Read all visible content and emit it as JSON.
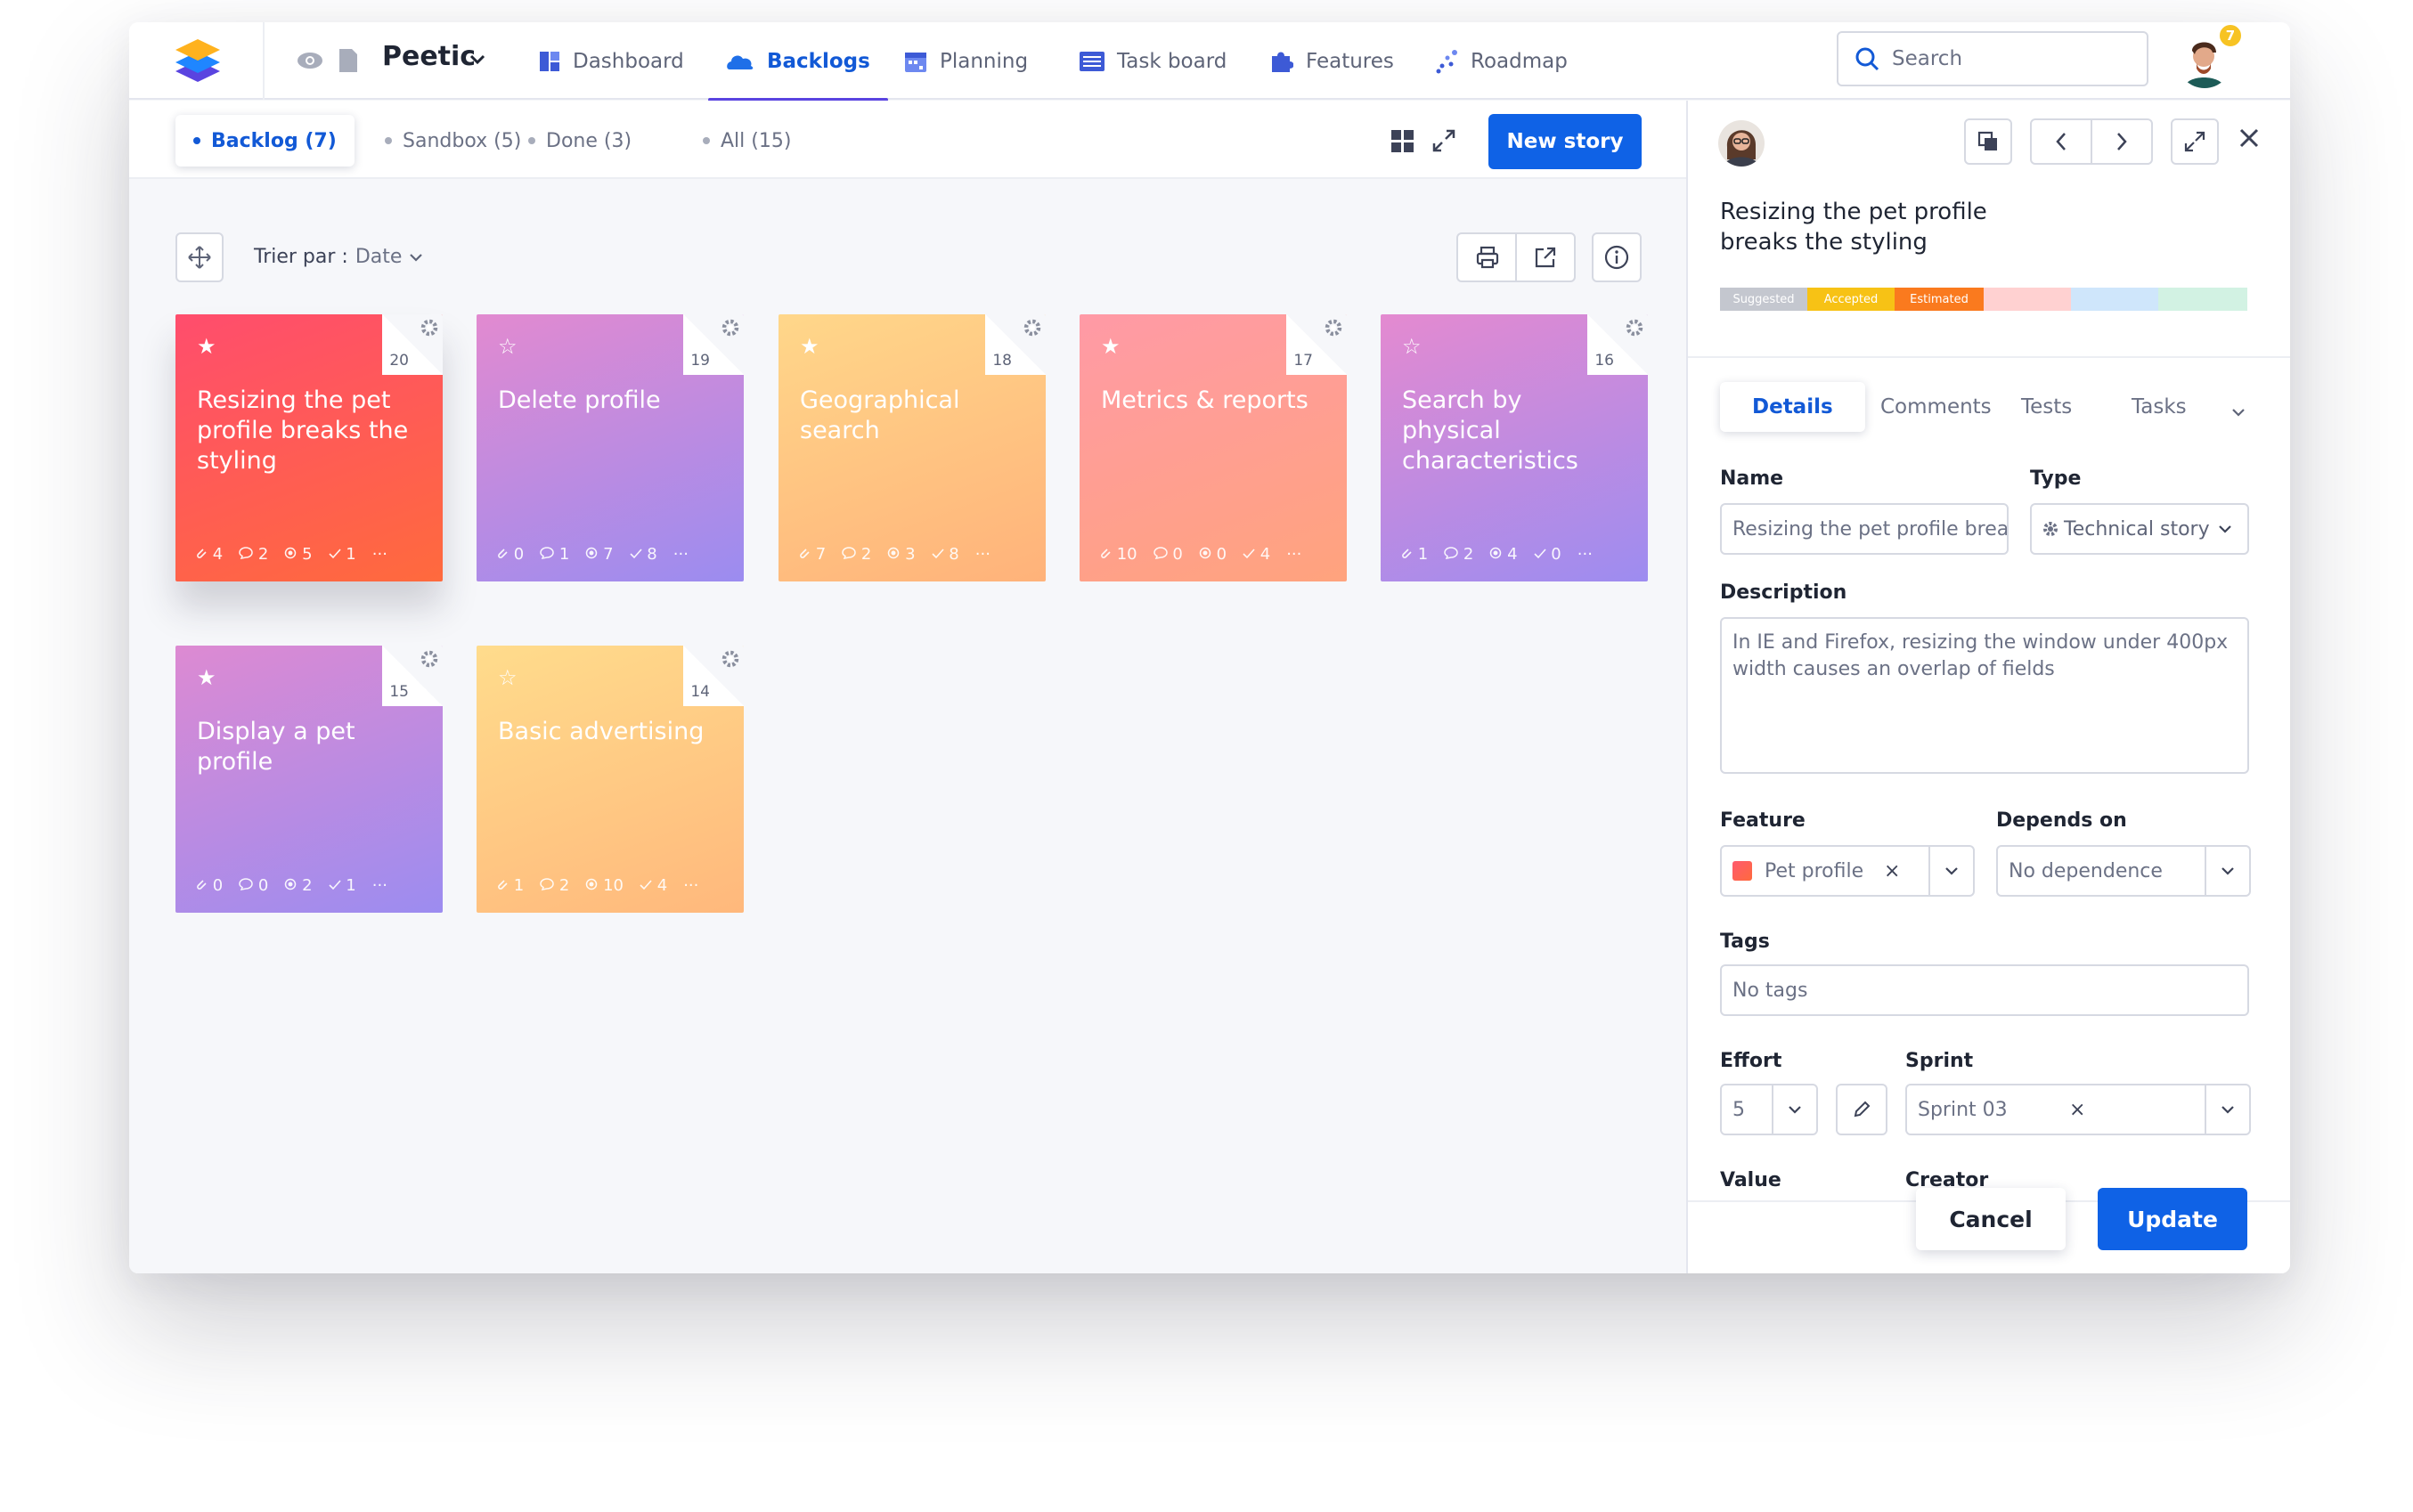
{
  "nav": {
    "project_name": "Peetic",
    "items": [
      {
        "label": "Dashboard",
        "icon": "dashboard-icon",
        "active": false
      },
      {
        "label": "Backlogs",
        "icon": "backlogs-icon",
        "active": true
      },
      {
        "label": "Planning",
        "icon": "planning-icon",
        "active": false
      },
      {
        "label": "Task board",
        "icon": "taskboard-icon",
        "active": false
      },
      {
        "label": "Features",
        "icon": "features-icon",
        "active": false
      },
      {
        "label": "Roadmap",
        "icon": "roadmap-icon",
        "active": false
      }
    ],
    "search_placeholder": "Search",
    "notification_count": "7"
  },
  "board": {
    "tabs": [
      {
        "label": "Backlog (7)",
        "active": true
      },
      {
        "label": "Sandbox (5)",
        "active": false
      },
      {
        "label": "Done (3)",
        "active": false
      },
      {
        "label": "All (15)",
        "active": false
      }
    ],
    "new_story_label": "New story",
    "sort_label": "Trier par :",
    "sort_value": "Date",
    "cards": [
      {
        "number": "20",
        "title": "Resizing the pet profile breaks the styling",
        "starred": true,
        "attachments": "4",
        "comments": "2",
        "effort": "5",
        "tasks": "1",
        "gradient": [
          "#ff4d6d",
          "#ff6a3d"
        ]
      },
      {
        "number": "19",
        "title": "Delete profile",
        "starred": false,
        "attachments": "0",
        "comments": "1",
        "effort": "7",
        "tasks": "8",
        "gradient": [
          "#e28ad0",
          "#9b8cf0"
        ]
      },
      {
        "number": "18",
        "title": "Geographical search",
        "starred": true,
        "attachments": "7",
        "comments": "2",
        "effort": "3",
        "tasks": "8",
        "gradient": [
          "#ffd78a",
          "#ffb27a"
        ]
      },
      {
        "number": "17",
        "title": "Metrics & reports",
        "starred": true,
        "attachments": "10",
        "comments": "0",
        "effort": "0",
        "tasks": "4",
        "gradient": [
          "#ff9aa6",
          "#ffa37d"
        ]
      },
      {
        "number": "16",
        "title": "Search by physical characteristics",
        "starred": false,
        "attachments": "1",
        "comments": "2",
        "effort": "4",
        "tasks": "0",
        "gradient": [
          "#e48ad0",
          "#9d8cf0"
        ]
      },
      {
        "number": "15",
        "title": "Display a pet profile",
        "starred": true,
        "attachments": "0",
        "comments": "0",
        "effort": "2",
        "tasks": "1",
        "gradient": [
          "#dd8ad2",
          "#9c8cf0"
        ]
      },
      {
        "number": "14",
        "title": "Basic advertising",
        "starred": false,
        "attachments": "1",
        "comments": "2",
        "effort": "10",
        "tasks": "4",
        "gradient": [
          "#ffdc8c",
          "#ffb87c"
        ]
      }
    ]
  },
  "panel": {
    "title": "Resizing the pet profile breaks the styling",
    "statuses": [
      {
        "label": "Suggested",
        "color": "#c4c7cf"
      },
      {
        "label": "Accepted",
        "color": "#f7c215"
      },
      {
        "label": "Estimated",
        "color": "#fa7a1e"
      },
      {
        "label": "",
        "color": "#ffd1d1"
      },
      {
        "label": "",
        "color": "#cfe6fb"
      },
      {
        "label": "",
        "color": "#d2f2e3"
      }
    ],
    "tabs": [
      "Details",
      "Comments",
      "Tests",
      "Tasks"
    ],
    "name_label": "Name",
    "name_value": "Resizing the pet profile brea",
    "type_label": "Type",
    "type_value": "Technical story",
    "description_label": "Description",
    "description_value": "In IE and Firefox, resizing the window under 400px width causes an overlap of fields",
    "feature_label": "Feature",
    "feature_value": "Pet profile",
    "depends_label": "Depends on",
    "depends_value": "No dependence",
    "tags_label": "Tags",
    "tags_value": "No tags",
    "effort_label": "Effort",
    "effort_value": "5",
    "sprint_label": "Sprint",
    "sprint_value": "Sprint 03",
    "value_label": "Value",
    "creator_label": "Creator",
    "cancel_label": "Cancel",
    "update_label": "Update"
  }
}
